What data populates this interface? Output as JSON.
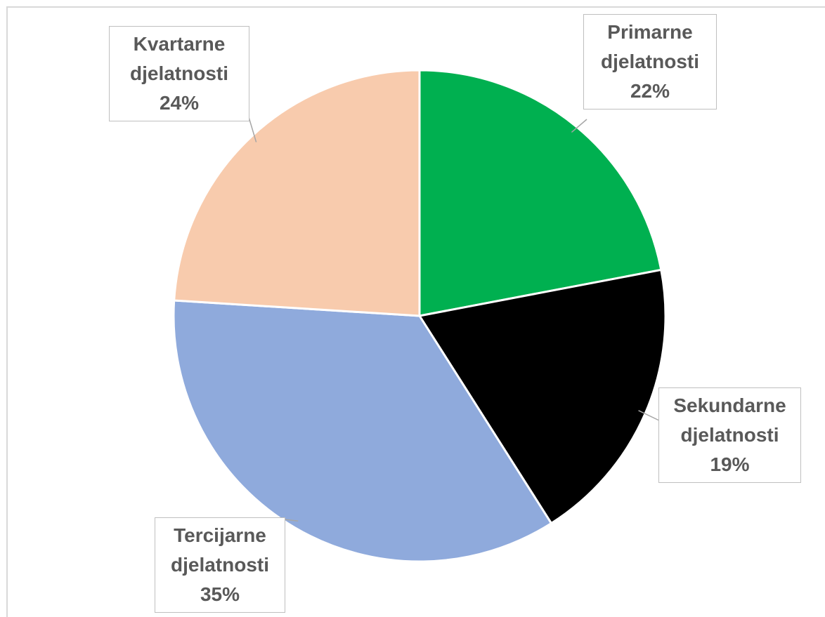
{
  "chart_data": {
    "type": "pie",
    "categories": [
      "Primarne djelatnosti",
      "Sekundarne djelatnosti",
      "Tercijarne djelatnosti",
      "Kvartarne djelatnosti"
    ],
    "values": [
      22,
      19,
      35,
      24
    ],
    "value_labels": [
      "22%",
      "19%",
      "35%",
      "24%"
    ],
    "colors": [
      "#00b050",
      "#000000",
      "#8faadc",
      "#f8cbad"
    ]
  }
}
